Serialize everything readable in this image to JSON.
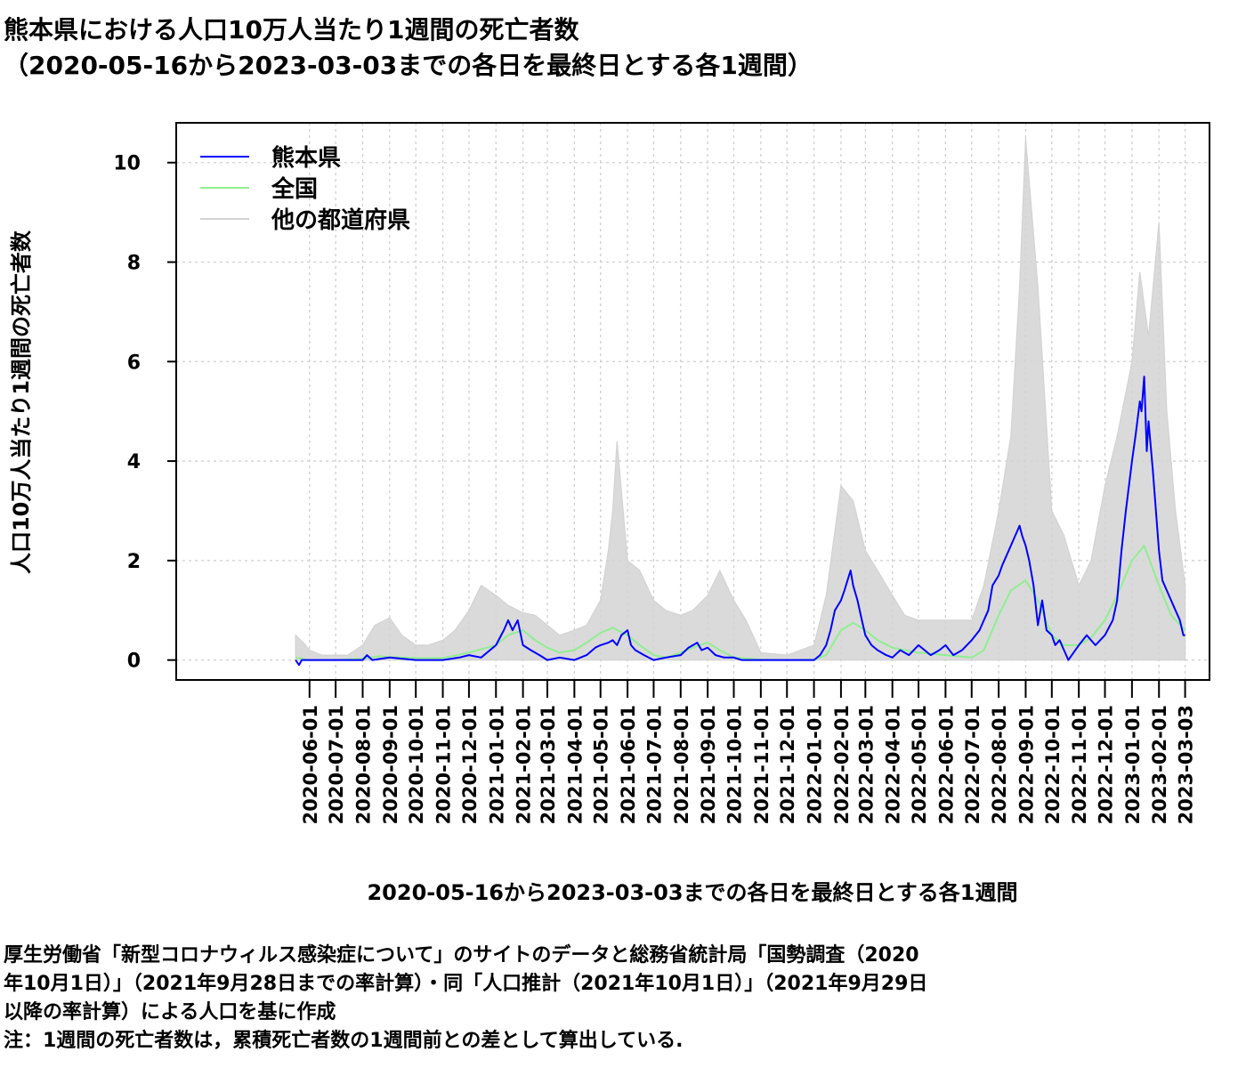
{
  "title": {
    "line1": "熊本県における人口10万人当たり1週間の死亡者数",
    "line2": "（2020-05-16から2023-03-03までの各日を最終日とする各1週間）"
  },
  "footer": {
    "line1": "厚生労働省「新型コロナウィルス感染症について」のサイトのデータと総務省統計局「国勢調査（2020",
    "line2": "年10月1日）」（2021年9月28日までの率計算）・同「人口推計（2021年10月1日）」（2021年9月29日",
    "line3": "以降の率計算）による人口を基に作成",
    "line4": "注：1週間の死亡者数は，累積死亡者数の1週間前との差として算出している."
  },
  "chart_data": {
    "type": "line",
    "ylabel": "人口10万人当たり1週間の死亡者数",
    "xlabel": "2020-05-16から2023-03-03までの各日を最終日とする各1週間",
    "x_range": [
      "2020-05-16",
      "2023-03-03"
    ],
    "xlim": [
      "2019-12-31",
      "2023-03-31"
    ],
    "ylim": [
      -0.4,
      10.8
    ],
    "yticks": [
      0,
      2,
      4,
      6,
      8,
      10
    ],
    "xticks": [
      "2020-06-01",
      "2020-07-01",
      "2020-08-01",
      "2020-09-01",
      "2020-10-01",
      "2020-11-01",
      "2020-12-01",
      "2021-01-01",
      "2021-02-01",
      "2021-03-01",
      "2021-04-01",
      "2021-05-01",
      "2021-06-01",
      "2021-07-01",
      "2021-08-01",
      "2021-09-01",
      "2021-10-01",
      "2021-11-01",
      "2021-12-01",
      "2022-01-01",
      "2022-02-01",
      "2022-03-01",
      "2022-04-01",
      "2022-05-01",
      "2022-06-01",
      "2022-07-01",
      "2022-08-01",
      "2022-09-01",
      "2022-10-01",
      "2022-11-01",
      "2022-12-01",
      "2023-01-01",
      "2023-02-01",
      "2023-03-03"
    ],
    "grid": true,
    "legend": {
      "position": "top-left",
      "entries": [
        {
          "label": "熊本県",
          "color": "#0000ff"
        },
        {
          "label": "全国",
          "color": "#90ee90"
        },
        {
          "label": "他の都道府県",
          "color": "#d3d3d3"
        }
      ]
    },
    "series": [
      {
        "name": "熊本県",
        "color": "#0000ff",
        "x": [
          "2020-05-16",
          "2020-05-20",
          "2020-05-23",
          "2020-06-01",
          "2020-07-01",
          "2020-08-01",
          "2020-08-06",
          "2020-08-12",
          "2020-09-01",
          "2020-10-01",
          "2020-11-01",
          "2020-11-20",
          "2020-12-01",
          "2020-12-15",
          "2021-01-01",
          "2021-01-10",
          "2021-01-15",
          "2021-01-20",
          "2021-01-26",
          "2021-02-01",
          "2021-02-10",
          "2021-02-20",
          "2021-03-01",
          "2021-03-15",
          "2021-04-01",
          "2021-04-15",
          "2021-04-25",
          "2021-05-01",
          "2021-05-10",
          "2021-05-15",
          "2021-05-20",
          "2021-05-25",
          "2021-06-01",
          "2021-06-05",
          "2021-06-10",
          "2021-06-20",
          "2021-07-01",
          "2021-07-15",
          "2021-08-01",
          "2021-08-10",
          "2021-08-20",
          "2021-08-25",
          "2021-09-01",
          "2021-09-10",
          "2021-09-20",
          "2021-10-01",
          "2021-10-10",
          "2021-11-01",
          "2021-12-01",
          "2022-01-01",
          "2022-01-08",
          "2022-01-15",
          "2022-01-20",
          "2022-01-25",
          "2022-02-01",
          "2022-02-05",
          "2022-02-12",
          "2022-02-15",
          "2022-02-20",
          "2022-02-25",
          "2022-03-01",
          "2022-03-08",
          "2022-03-15",
          "2022-03-25",
          "2022-04-01",
          "2022-04-10",
          "2022-04-20",
          "2022-05-01",
          "2022-05-15",
          "2022-05-25",
          "2022-06-01",
          "2022-06-10",
          "2022-06-20",
          "2022-07-01",
          "2022-07-10",
          "2022-07-15",
          "2022-07-20",
          "2022-07-25",
          "2022-08-01",
          "2022-08-05",
          "2022-08-10",
          "2022-08-15",
          "2022-08-20",
          "2022-08-25",
          "2022-08-28",
          "2022-09-01",
          "2022-09-05",
          "2022-09-10",
          "2022-09-15",
          "2022-09-20",
          "2022-09-25",
          "2022-10-01",
          "2022-10-05",
          "2022-10-10",
          "2022-10-15",
          "2022-10-20",
          "2022-11-01",
          "2022-11-10",
          "2022-11-20",
          "2022-12-01",
          "2022-12-10",
          "2022-12-15",
          "2022-12-20",
          "2022-12-25",
          "2023-01-01",
          "2023-01-05",
          "2023-01-10",
          "2023-01-12",
          "2023-01-15",
          "2023-01-18",
          "2023-01-20",
          "2023-01-25",
          "2023-02-01",
          "2023-02-05",
          "2023-02-10",
          "2023-02-15",
          "2023-02-20",
          "2023-02-25",
          "2023-03-01",
          "2023-03-03"
        ],
        "values": [
          0.0,
          -0.1,
          0.0,
          0.0,
          0.0,
          0.0,
          0.1,
          0.0,
          0.05,
          0.0,
          0.0,
          0.05,
          0.1,
          0.05,
          0.3,
          0.6,
          0.8,
          0.6,
          0.8,
          0.3,
          0.2,
          0.1,
          0.0,
          0.05,
          0.0,
          0.1,
          0.25,
          0.3,
          0.35,
          0.4,
          0.3,
          0.5,
          0.6,
          0.3,
          0.2,
          0.1,
          0.0,
          0.05,
          0.1,
          0.25,
          0.35,
          0.2,
          0.25,
          0.1,
          0.05,
          0.05,
          0.0,
          0.0,
          0.0,
          0.0,
          0.1,
          0.3,
          0.6,
          1.0,
          1.2,
          1.4,
          1.8,
          1.5,
          1.2,
          0.8,
          0.5,
          0.3,
          0.2,
          0.1,
          0.05,
          0.2,
          0.1,
          0.3,
          0.1,
          0.2,
          0.3,
          0.1,
          0.2,
          0.4,
          0.6,
          0.8,
          1.0,
          1.5,
          1.7,
          1.9,
          2.1,
          2.3,
          2.5,
          2.7,
          2.5,
          2.3,
          2.0,
          1.5,
          0.7,
          1.2,
          0.6,
          0.5,
          0.3,
          0.4,
          0.2,
          0.0,
          0.3,
          0.5,
          0.3,
          0.5,
          0.8,
          1.2,
          2.2,
          3.0,
          4.0,
          4.5,
          5.2,
          5.0,
          5.7,
          4.2,
          4.8,
          3.8,
          2.2,
          1.6,
          1.4,
          1.2,
          1.0,
          0.8,
          0.5,
          0.5
        ]
      },
      {
        "name": "全国",
        "color": "#90ee90",
        "x": [
          "2020-05-16",
          "2020-06-01",
          "2020-07-01",
          "2020-08-01",
          "2020-08-20",
          "2020-09-01",
          "2020-10-01",
          "2020-11-01",
          "2020-12-01",
          "2021-01-01",
          "2021-01-15",
          "2021-02-01",
          "2021-02-15",
          "2021-03-01",
          "2021-03-15",
          "2021-04-01",
          "2021-04-15",
          "2021-05-01",
          "2021-05-15",
          "2021-06-01",
          "2021-06-15",
          "2021-07-01",
          "2021-07-15",
          "2021-08-01",
          "2021-08-15",
          "2021-09-01",
          "2021-09-15",
          "2021-10-01",
          "2021-11-01",
          "2021-12-01",
          "2022-01-01",
          "2022-01-15",
          "2022-02-01",
          "2022-02-15",
          "2022-03-01",
          "2022-03-15",
          "2022-04-01",
          "2022-04-15",
          "2022-05-01",
          "2022-06-01",
          "2022-07-01",
          "2022-07-15",
          "2022-08-01",
          "2022-08-15",
          "2022-09-01",
          "2022-09-15",
          "2022-10-01",
          "2022-10-15",
          "2022-11-01",
          "2022-11-15",
          "2022-12-01",
          "2022-12-15",
          "2023-01-01",
          "2023-01-15",
          "2023-02-01",
          "2023-02-15",
          "2023-03-03"
        ],
        "values": [
          0.05,
          0.0,
          0.0,
          0.03,
          0.08,
          0.06,
          0.04,
          0.04,
          0.15,
          0.3,
          0.5,
          0.6,
          0.4,
          0.25,
          0.15,
          0.2,
          0.35,
          0.55,
          0.65,
          0.5,
          0.3,
          0.1,
          0.05,
          0.15,
          0.25,
          0.35,
          0.2,
          0.05,
          0.01,
          0.0,
          0.01,
          0.1,
          0.6,
          0.75,
          0.6,
          0.4,
          0.25,
          0.2,
          0.15,
          0.1,
          0.05,
          0.2,
          0.9,
          1.4,
          1.6,
          1.2,
          0.5,
          0.3,
          0.3,
          0.45,
          0.8,
          1.3,
          2.0,
          2.3,
          1.5,
          0.9,
          0.6
        ]
      },
      {
        "name": "他の都道府県",
        "color": "#d3d3d3",
        "x": [
          "2020-05-16",
          "2020-05-25",
          "2020-06-01",
          "2020-06-15",
          "2020-07-01",
          "2020-07-15",
          "2020-08-01",
          "2020-08-15",
          "2020-09-01",
          "2020-09-15",
          "2020-10-01",
          "2020-10-15",
          "2020-11-01",
          "2020-11-15",
          "2020-12-01",
          "2020-12-15",
          "2021-01-01",
          "2021-01-15",
          "2021-02-01",
          "2021-02-15",
          "2021-03-01",
          "2021-03-15",
          "2021-04-01",
          "2021-04-15",
          "2021-05-01",
          "2021-05-10",
          "2021-05-15",
          "2021-05-20",
          "2021-06-01",
          "2021-06-15",
          "2021-07-01",
          "2021-07-15",
          "2021-08-01",
          "2021-08-15",
          "2021-09-01",
          "2021-09-15",
          "2021-10-01",
          "2021-10-15",
          "2021-11-01",
          "2021-12-01",
          "2022-01-01",
          "2022-01-15",
          "2022-02-01",
          "2022-02-15",
          "2022-03-01",
          "2022-03-15",
          "2022-04-01",
          "2022-04-15",
          "2022-05-01",
          "2022-06-01",
          "2022-07-01",
          "2022-07-15",
          "2022-08-01",
          "2022-08-15",
          "2022-08-25",
          "2022-09-01",
          "2022-09-15",
          "2022-10-01",
          "2022-10-15",
          "2022-11-01",
          "2022-11-15",
          "2022-12-01",
          "2022-12-15",
          "2023-01-01",
          "2023-01-10",
          "2023-01-20",
          "2023-02-01",
          "2023-02-10",
          "2023-02-20",
          "2023-03-03"
        ],
        "values_max": [
          0.5,
          0.35,
          0.2,
          0.1,
          0.1,
          0.1,
          0.3,
          0.7,
          0.85,
          0.5,
          0.3,
          0.3,
          0.4,
          0.6,
          1.0,
          1.5,
          1.3,
          1.1,
          0.95,
          0.9,
          0.7,
          0.5,
          0.6,
          0.7,
          1.2,
          2.2,
          3.0,
          4.4,
          2.0,
          1.8,
          1.2,
          1.0,
          0.9,
          1.0,
          1.3,
          1.8,
          1.2,
          0.8,
          0.15,
          0.1,
          0.3,
          1.3,
          3.5,
          3.2,
          2.2,
          1.8,
          1.3,
          0.9,
          0.8,
          0.8,
          0.8,
          1.5,
          3.0,
          4.5,
          7.5,
          10.5,
          7.5,
          3.0,
          2.5,
          1.5,
          2.0,
          3.5,
          4.5,
          6.0,
          7.8,
          6.5,
          8.8,
          5.0,
          3.0,
          1.5
        ],
        "values_min": [
          0.0,
          0.0,
          0.0,
          0.0,
          0.0,
          0.0,
          0.0,
          0.0,
          0.0,
          0.0,
          0.0,
          0.0,
          0.0,
          0.0,
          0.0,
          0.0,
          0.0,
          0.0,
          0.0,
          0.0,
          0.0,
          0.0,
          0.0,
          0.0,
          0.0,
          0.0,
          0.0,
          0.0,
          0.0,
          0.0,
          0.0,
          0.0,
          0.0,
          0.0,
          0.0,
          0.0,
          0.0,
          0.0,
          0.0,
          0.0,
          0.0,
          0.0,
          0.0,
          0.0,
          0.0,
          0.0,
          0.0,
          0.0,
          0.0,
          0.0,
          0.0,
          0.0,
          0.0,
          0.0,
          0.0,
          0.0,
          0.0,
          0.0,
          0.0,
          0.0,
          0.0,
          0.0,
          0.0,
          0.0,
          0.0,
          0.0,
          0.0,
          0.0,
          0.0,
          0.0
        ]
      }
    ]
  }
}
